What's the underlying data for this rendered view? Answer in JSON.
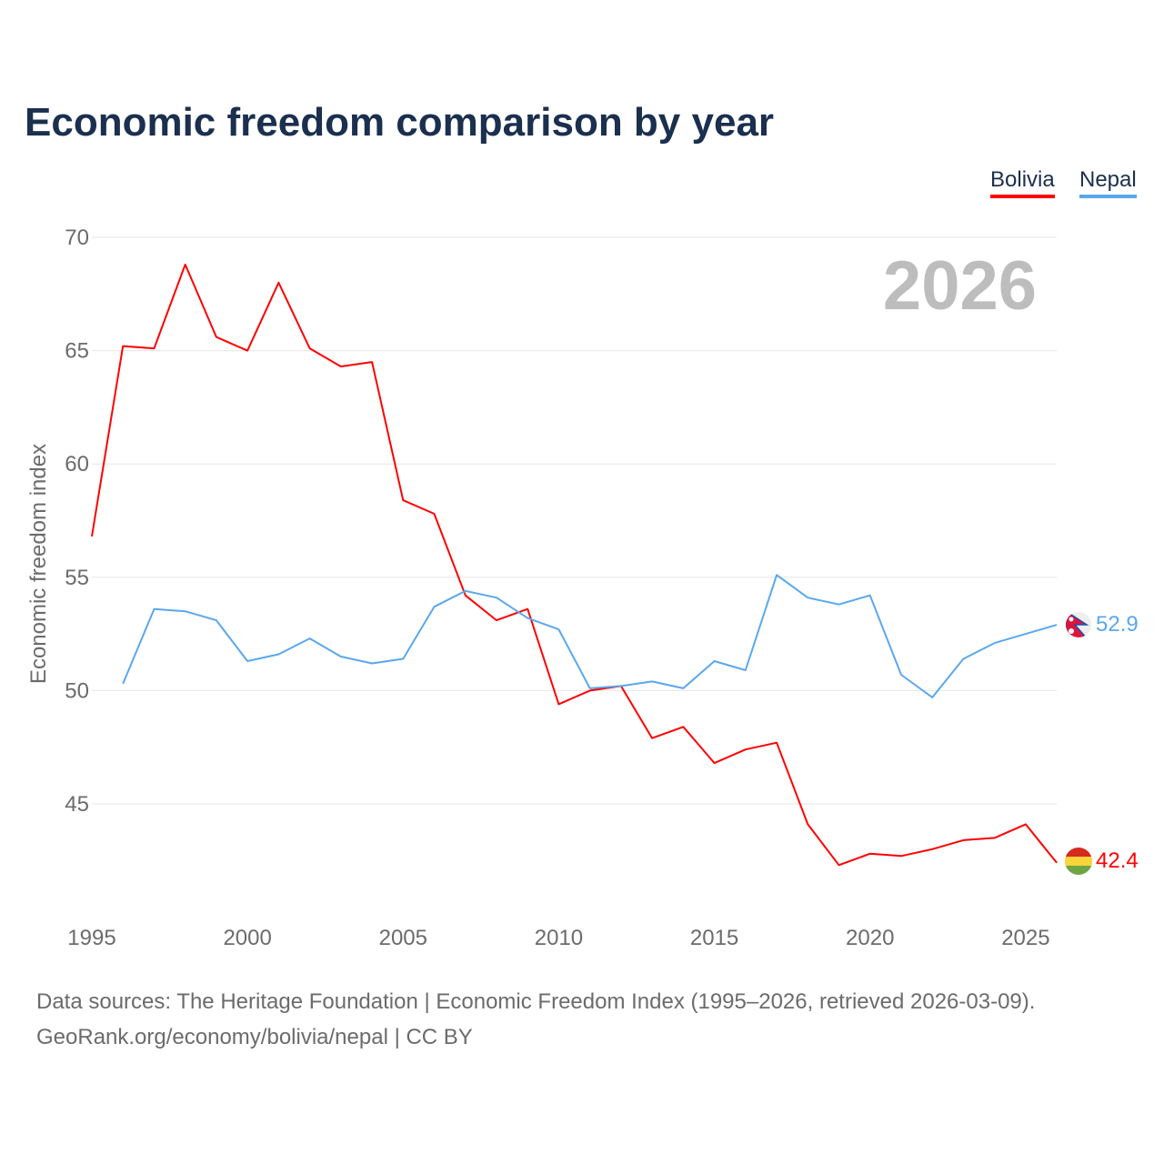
{
  "chart_data": {
    "type": "line",
    "title": "Economic freedom comparison by year",
    "ylabel": "Economic freedom index",
    "xlabel": "",
    "ylim": [
      45,
      70
    ],
    "xlim": [
      1995,
      2026
    ],
    "yticks": [
      "70",
      "65",
      "60",
      "55",
      "50",
      "45"
    ],
    "xticks": [
      "1995",
      "2000",
      "2005",
      "2010",
      "2015",
      "2020",
      "2025"
    ],
    "year_label": "2026",
    "legend": [
      "Bolivia",
      "Nepal"
    ],
    "series": [
      {
        "name": "Bolivia",
        "color": "#ff0000",
        "end_label": "42.4",
        "x": [
          1995,
          1996,
          1997,
          1998,
          1999,
          2000,
          2001,
          2002,
          2003,
          2004,
          2005,
          2006,
          2007,
          2008,
          2009,
          2010,
          2011,
          2012,
          2013,
          2014,
          2015,
          2016,
          2017,
          2018,
          2019,
          2020,
          2021,
          2022,
          2023,
          2024,
          2025,
          2026
        ],
        "values": [
          56.8,
          65.2,
          65.1,
          68.8,
          65.6,
          65.0,
          68.0,
          65.1,
          64.3,
          64.5,
          58.4,
          57.8,
          54.2,
          53.1,
          53.6,
          49.4,
          50.0,
          50.2,
          47.9,
          48.4,
          46.8,
          47.4,
          47.7,
          44.1,
          42.3,
          42.8,
          42.7,
          43.0,
          43.4,
          43.5,
          44.1,
          42.4
        ]
      },
      {
        "name": "Nepal",
        "color": "#5aa7ee",
        "end_label": "52.9",
        "x": [
          1996,
          1997,
          1998,
          1999,
          2000,
          2001,
          2002,
          2003,
          2004,
          2005,
          2006,
          2007,
          2008,
          2009,
          2010,
          2011,
          2012,
          2013,
          2014,
          2015,
          2016,
          2017,
          2018,
          2019,
          2020,
          2021,
          2022,
          2023,
          2024,
          2025,
          2026
        ],
        "values": [
          50.3,
          53.6,
          53.5,
          53.1,
          51.3,
          51.6,
          52.3,
          51.5,
          51.2,
          51.4,
          53.7,
          54.4,
          54.1,
          53.2,
          52.7,
          50.1,
          50.2,
          50.4,
          50.1,
          51.3,
          50.9,
          55.1,
          54.1,
          53.8,
          54.2,
          50.7,
          49.7,
          51.4,
          52.1,
          52.5,
          52.9
        ]
      }
    ]
  },
  "footer": {
    "line1": "Data sources: The Heritage Foundation | Economic Freedom Index (1995–2026, retrieved 2026-03-09).",
    "line2": "GeoRank.org/economy/bolivia/nepal | CC BY"
  }
}
